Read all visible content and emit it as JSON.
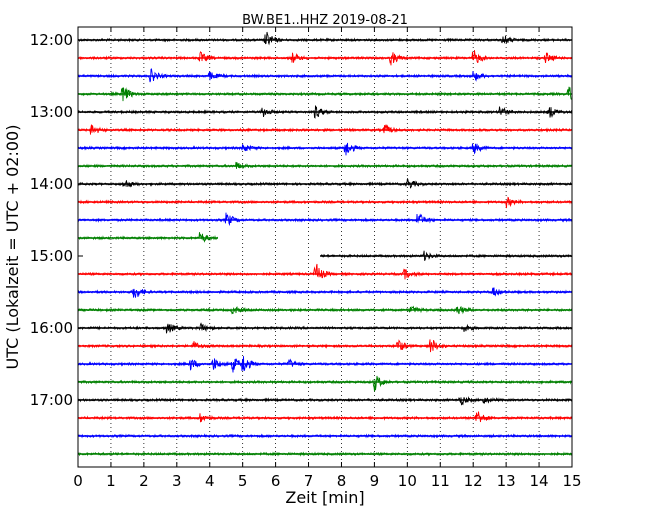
{
  "chart_data": {
    "type": "line",
    "title": "BW.BE1..HHZ 2019-08-21",
    "xlabel": "Zeit  [min]",
    "ylabel": "UTC (Lokalzeit = UTC + 02:00)",
    "xlim": [
      0,
      15
    ],
    "x_ticks": [
      "0",
      "1",
      "2",
      "3",
      "4",
      "5",
      "6",
      "7",
      "8",
      "9",
      "10",
      "11",
      "12",
      "13",
      "14",
      "15"
    ],
    "grid": "vertical-dotted",
    "trace_interval_min": 15,
    "y_ticks": [
      {
        "label": "12:00",
        "trace": 0
      },
      {
        "label": "13:00",
        "trace": 4
      },
      {
        "label": "14:00",
        "trace": 8
      },
      {
        "label": "15:00",
        "trace": 12
      },
      {
        "label": "16:00",
        "trace": 16
      },
      {
        "label": "17:00",
        "trace": 20
      }
    ],
    "color_cycle": [
      "#000000",
      "#ff0000",
      "#0000ff",
      "#008000"
    ],
    "series": [
      {
        "start": "12:00",
        "color": "#000000",
        "x_range": [
          0,
          15
        ],
        "events": [
          {
            "x": 5.7,
            "amp": 1.0
          },
          {
            "x": 12.9,
            "amp": 0.6
          }
        ]
      },
      {
        "start": "12:15",
        "color": "#ff0000",
        "x_range": [
          0,
          15
        ],
        "events": [
          {
            "x": 3.7,
            "amp": 0.7
          },
          {
            "x": 6.5,
            "amp": 0.6
          },
          {
            "x": 9.5,
            "amp": 0.8
          },
          {
            "x": 12.0,
            "amp": 1.0
          },
          {
            "x": 14.2,
            "amp": 0.6
          }
        ]
      },
      {
        "start": "12:30",
        "color": "#0000ff",
        "x_range": [
          0,
          15
        ],
        "events": [
          {
            "x": 2.2,
            "amp": 0.8
          },
          {
            "x": 4.0,
            "amp": 0.5
          },
          {
            "x": 12.0,
            "amp": 0.6
          }
        ]
      },
      {
        "start": "12:45",
        "color": "#008000",
        "x_range": [
          0,
          15
        ],
        "events": [
          {
            "x": 1.35,
            "amp": 1.0
          },
          {
            "x": 14.9,
            "amp": 1.1
          }
        ]
      },
      {
        "start": "13:00",
        "color": "#000000",
        "x_range": [
          0,
          15
        ],
        "events": [
          {
            "x": 5.6,
            "amp": 0.6
          },
          {
            "x": 7.2,
            "amp": 0.8
          },
          {
            "x": 12.8,
            "amp": 0.7
          },
          {
            "x": 14.3,
            "amp": 0.7
          }
        ]
      },
      {
        "start": "13:15",
        "color": "#ff0000",
        "x_range": [
          0,
          15
        ],
        "events": [
          {
            "x": 0.4,
            "amp": 0.7
          },
          {
            "x": 9.3,
            "amp": 0.6
          }
        ]
      },
      {
        "start": "13:30",
        "color": "#0000ff",
        "x_range": [
          0,
          15
        ],
        "events": [
          {
            "x": 5.0,
            "amp": 0.5
          },
          {
            "x": 8.1,
            "amp": 1.1
          },
          {
            "x": 12.0,
            "amp": 0.7
          }
        ]
      },
      {
        "start": "13:45",
        "color": "#008000",
        "x_range": [
          0,
          15
        ],
        "events": [
          {
            "x": 4.8,
            "amp": 0.4
          }
        ]
      },
      {
        "start": "14:00",
        "color": "#000000",
        "x_range": [
          0,
          15
        ],
        "events": [
          {
            "x": 1.4,
            "amp": 0.6
          },
          {
            "x": 10.0,
            "amp": 0.7
          }
        ]
      },
      {
        "start": "14:15",
        "color": "#ff0000",
        "x_range": [
          0,
          15
        ],
        "events": [
          {
            "x": 13.0,
            "amp": 0.6
          }
        ]
      },
      {
        "start": "14:30",
        "color": "#0000ff",
        "x_range": [
          0,
          15
        ],
        "events": [
          {
            "x": 4.5,
            "amp": 0.8
          },
          {
            "x": 10.3,
            "amp": 1.0
          }
        ]
      },
      {
        "start": "14:45",
        "color": "#008000",
        "x_range": [
          0,
          4.25
        ],
        "events": [
          {
            "x": 3.7,
            "amp": 0.7
          }
        ]
      },
      {
        "start": "15:00",
        "color": "#000000",
        "x_range": [
          7.35,
          15
        ],
        "events": [
          {
            "x": 10.5,
            "amp": 0.5
          }
        ]
      },
      {
        "start": "15:15",
        "color": "#ff0000",
        "x_range": [
          0,
          15
        ],
        "events": [
          {
            "x": 7.2,
            "amp": 1.4
          },
          {
            "x": 9.9,
            "amp": 0.6
          }
        ]
      },
      {
        "start": "15:30",
        "color": "#0000ff",
        "x_range": [
          0,
          15
        ],
        "events": [
          {
            "x": 1.7,
            "amp": 0.9
          },
          {
            "x": 12.6,
            "amp": 0.5
          }
        ]
      },
      {
        "start": "15:45",
        "color": "#008000",
        "x_range": [
          0,
          15
        ],
        "events": [
          {
            "x": 4.7,
            "amp": 0.5
          },
          {
            "x": 10.1,
            "amp": 0.5
          },
          {
            "x": 11.5,
            "amp": 0.6
          }
        ]
      },
      {
        "start": "16:00",
        "color": "#000000",
        "x_range": [
          0,
          15
        ],
        "events": [
          {
            "x": 2.7,
            "amp": 0.7
          },
          {
            "x": 3.7,
            "amp": 0.5
          },
          {
            "x": 11.7,
            "amp": 0.4
          }
        ]
      },
      {
        "start": "16:15",
        "color": "#ff0000",
        "x_range": [
          0,
          15
        ],
        "events": [
          {
            "x": 3.5,
            "amp": 0.5
          },
          {
            "x": 9.7,
            "amp": 0.8
          },
          {
            "x": 10.7,
            "amp": 1.0
          }
        ]
      },
      {
        "start": "16:30",
        "color": "#0000ff",
        "x_range": [
          0,
          15
        ],
        "events": [
          {
            "x": 3.4,
            "amp": 0.7
          },
          {
            "x": 4.1,
            "amp": 0.8
          },
          {
            "x": 4.7,
            "amp": 0.9
          },
          {
            "x": 5.0,
            "amp": 1.1
          },
          {
            "x": 6.4,
            "amp": 0.5
          }
        ]
      },
      {
        "start": "16:45",
        "color": "#008000",
        "x_range": [
          0,
          15
        ],
        "events": [
          {
            "x": 9.0,
            "amp": 1.0
          }
        ]
      },
      {
        "start": "17:00",
        "color": "#000000",
        "x_range": [
          0,
          15
        ],
        "events": [
          {
            "x": 11.6,
            "amp": 0.6
          },
          {
            "x": 12.3,
            "amp": 0.4
          }
        ]
      },
      {
        "start": "17:15",
        "color": "#ff0000",
        "x_range": [
          0,
          15
        ],
        "events": [
          {
            "x": 3.7,
            "amp": 0.5
          },
          {
            "x": 12.1,
            "amp": 1.1
          }
        ]
      },
      {
        "start": "17:30",
        "color": "#0000ff",
        "x_range": [
          0,
          15
        ],
        "events": []
      },
      {
        "start": "17:45",
        "color": "#008000",
        "x_range": [
          0,
          15
        ],
        "events": []
      }
    ]
  }
}
